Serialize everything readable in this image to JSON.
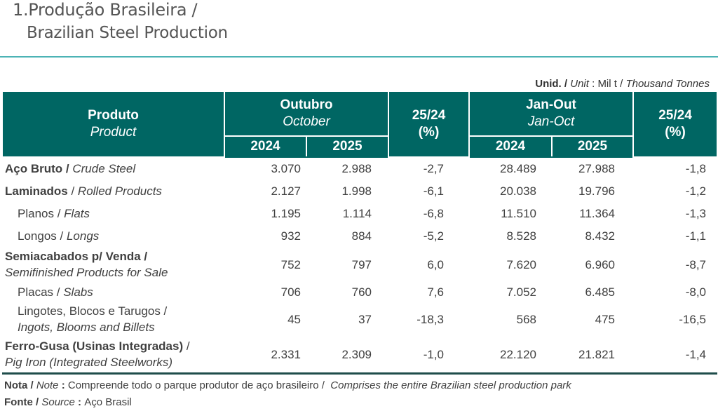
{
  "title": {
    "line1": "1.Produção Brasileira /",
    "line2": "Brazilian Steel Production"
  },
  "unit": {
    "label_pt": "Unid. /",
    "label_en": "Unit",
    "sep": " : ",
    "value_pt": "Mil t /",
    "value_en": "Thousand Tonnes"
  },
  "header": {
    "product_pt": "Produto",
    "product_en": "Product",
    "october_pt": "Outubro",
    "october_en": "October",
    "change_top": "25/24",
    "change_bottom": "(%)",
    "janout_pt": "Jan-Out",
    "janout_en": "Jan-Oct",
    "year1": "2024",
    "year2": "2025"
  },
  "colors": {
    "header_bg": "#006663",
    "header_text": "#ffffff",
    "title_rule": "#4cb3b5",
    "bottom_rule": "#1f4d4b"
  },
  "rows": [
    {
      "pt": "Aço Bruto /",
      "en": "Crude Steel",
      "oct2024": "3.070",
      "oct2025": "2.988",
      "oct_chg": "-2,7",
      "ytd2024": "28.489",
      "ytd2025": "27.988",
      "ytd_chg": "-1,8"
    },
    {
      "pt": "Laminados",
      "en": "Rolled Products",
      "oct2024": "2.127",
      "oct2025": "1.998",
      "oct_chg": "-6,1",
      "ytd2024": "20.038",
      "ytd2025": "19.796",
      "ytd_chg": "-1,2"
    },
    {
      "pt": "Planos /",
      "en": "Flats",
      "oct2024": "1.195",
      "oct2025": "1.114",
      "oct_chg": "-6,8",
      "ytd2024": "11.510",
      "ytd2025": "11.364",
      "ytd_chg": "-1,3"
    },
    {
      "pt": "Longos /",
      "en": "Longs",
      "oct2024": "932",
      "oct2025": "884",
      "oct_chg": "-5,2",
      "ytd2024": "8.528",
      "ytd2025": "8.432",
      "ytd_chg": "-1,1"
    },
    {
      "pt": "Semiacabados p/ Venda /",
      "en": "Semifinished Products for Sale",
      "oct2024": "752",
      "oct2025": "797",
      "oct_chg": "6,0",
      "ytd2024": "7.620",
      "ytd2025": "6.960",
      "ytd_chg": "-8,7"
    },
    {
      "pt": "Placas /",
      "en": "Slabs",
      "oct2024": "706",
      "oct2025": "760",
      "oct_chg": "7,6",
      "ytd2024": "7.052",
      "ytd2025": "6.485",
      "ytd_chg": "-8,0"
    },
    {
      "pt": "Lingotes, Blocos e Tarugos /",
      "en": "Ingots, Blooms and Billets",
      "oct2024": "45",
      "oct2025": "37",
      "oct_chg": "-18,3",
      "ytd2024": "568",
      "ytd2025": "475",
      "ytd_chg": "-16,5"
    },
    {
      "pt": "Ferro-Gusa (Usinas Integradas)",
      "pt_sep": " /",
      "en": "Pig Iron (Integrated Steelworks)",
      "oct2024": "2.331",
      "oct2025": "2.309",
      "oct_chg": "-1,0",
      "ytd2024": "22.120",
      "ytd2025": "21.821",
      "ytd_chg": "-1,4"
    }
  ],
  "laminados_sep": " / ",
  "notes": {
    "nota_pt": "Nota /",
    "nota_en": "Note",
    "nota_text_pt": "Compreende todo o parque produtor de aço brasileiro /",
    "nota_text_en": "Comprises the entire Brazilian steel production park",
    "fonte_pt": "Fonte /",
    "fonte_en": "Source",
    "fonte_text": "Aço Brasil",
    "sep": " : "
  }
}
